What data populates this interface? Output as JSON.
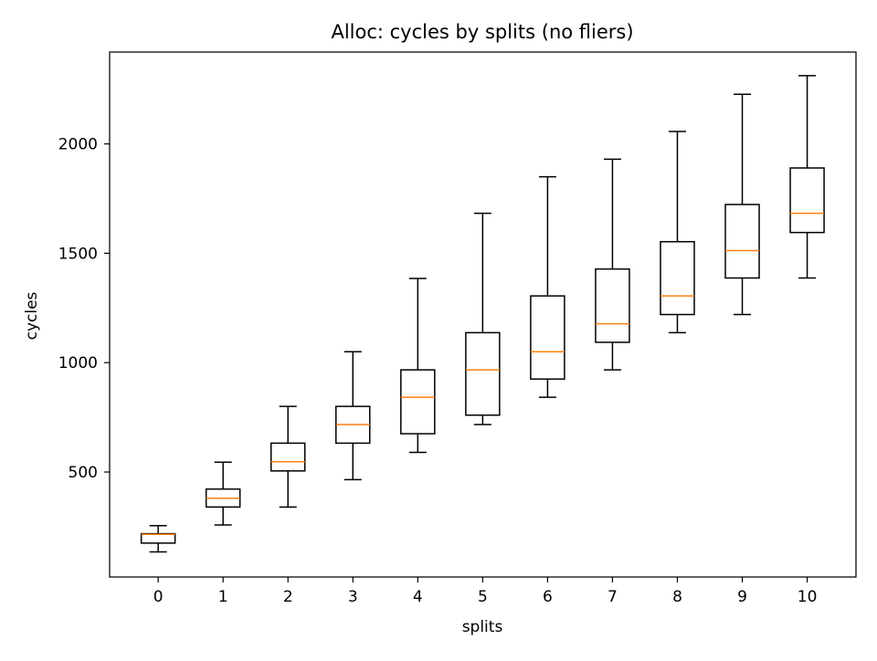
{
  "chart_data": {
    "type": "box",
    "title": "Alloc: cycles by splits (no fliers)",
    "xlabel": "splits",
    "ylabel": "cycles",
    "categories": [
      "0",
      "1",
      "2",
      "3",
      "4",
      "5",
      "6",
      "7",
      "8",
      "9",
      "10"
    ],
    "y_ticks": [
      500,
      1000,
      1500,
      2000
    ],
    "y_tick_labels": [
      "500",
      "1000",
      "1500",
      "2000"
    ],
    "ylim": [
      20,
      2420
    ],
    "grid": false,
    "legend": "none",
    "boxes": [
      {
        "category": "0",
        "whisker_low": 135,
        "q1": 175,
        "median": 215,
        "q3": 218,
        "whisker_high": 255
      },
      {
        "category": "1",
        "whisker_low": 258,
        "q1": 340,
        "median": 380,
        "q3": 422,
        "whisker_high": 545
      },
      {
        "category": "2",
        "whisker_low": 340,
        "q1": 505,
        "median": 547,
        "q3": 632,
        "whisker_high": 800
      },
      {
        "category": "3",
        "whisker_low": 465,
        "q1": 632,
        "median": 717,
        "q3": 800,
        "whisker_high": 1050
      },
      {
        "category": "4",
        "whisker_low": 590,
        "q1": 675,
        "median": 842,
        "q3": 967,
        "whisker_high": 1385
      },
      {
        "category": "5",
        "whisker_low": 717,
        "q1": 760,
        "median": 967,
        "q3": 1137,
        "whisker_high": 1683
      },
      {
        "category": "6",
        "whisker_low": 842,
        "q1": 925,
        "median": 1050,
        "q3": 1305,
        "whisker_high": 1850
      },
      {
        "category": "7",
        "whisker_low": 967,
        "q1": 1093,
        "median": 1178,
        "q3": 1428,
        "whisker_high": 1930
      },
      {
        "category": "8",
        "whisker_low": 1137,
        "q1": 1220,
        "median": 1305,
        "q3": 1553,
        "whisker_high": 2057
      },
      {
        "category": "9",
        "whisker_low": 1220,
        "q1": 1387,
        "median": 1512,
        "q3": 1723,
        "whisker_high": 2227
      },
      {
        "category": "10",
        "whisker_low": 1387,
        "q1": 1595,
        "median": 1683,
        "q3": 1890,
        "whisker_high": 2312
      }
    ],
    "colors": {
      "box": "#000000",
      "median": "#ff7f0e",
      "axes": "#000000"
    }
  }
}
